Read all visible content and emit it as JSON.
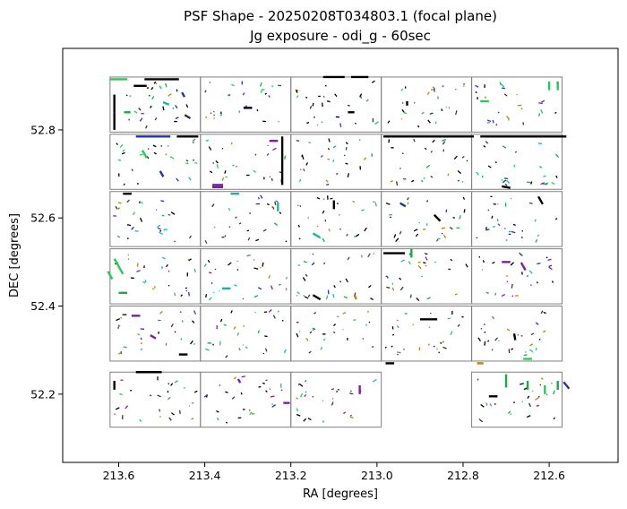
{
  "chart_data": {
    "type": "scatter",
    "title": "PSF Shape - 20250208T034803.1 (focal plane)",
    "subtitle": "Jg exposure - odi_g - 60sec",
    "xlabel": "RA [degrees]",
    "ylabel": "DEC [degrees]",
    "xlim": [
      213.73,
      212.44
    ],
    "ylim": [
      52.045,
      52.985
    ],
    "x_inverted": true,
    "grid": false,
    "xticks": [
      213.6,
      213.4,
      213.2,
      213.0,
      212.8,
      212.6
    ],
    "xtick_labels": [
      "213.6",
      "213.4",
      "213.2",
      "213.0",
      "212.8",
      "212.6"
    ],
    "yticks": [
      52.2,
      52.4,
      52.6,
      52.8
    ],
    "ytick_labels": [
      "52.2",
      "52.4",
      "52.6",
      "52.8"
    ],
    "chips": [
      {
        "ra_min": 213.41,
        "ra_max": 213.62,
        "dec_min": 52.795,
        "dec_max": 52.92
      },
      {
        "ra_min": 213.2,
        "ra_max": 213.41,
        "dec_min": 52.795,
        "dec_max": 52.92
      },
      {
        "ra_min": 212.99,
        "ra_max": 213.2,
        "dec_min": 52.795,
        "dec_max": 52.92
      },
      {
        "ra_min": 212.78,
        "ra_max": 212.99,
        "dec_min": 52.795,
        "dec_max": 52.92
      },
      {
        "ra_min": 212.57,
        "ra_max": 212.78,
        "dec_min": 52.795,
        "dec_max": 52.92
      },
      {
        "ra_min": 213.41,
        "ra_max": 213.62,
        "dec_min": 52.665,
        "dec_max": 52.79
      },
      {
        "ra_min": 213.2,
        "ra_max": 213.41,
        "dec_min": 52.665,
        "dec_max": 52.79
      },
      {
        "ra_min": 212.99,
        "ra_max": 213.2,
        "dec_min": 52.665,
        "dec_max": 52.79
      },
      {
        "ra_min": 212.78,
        "ra_max": 212.99,
        "dec_min": 52.665,
        "dec_max": 52.79
      },
      {
        "ra_min": 212.57,
        "ra_max": 212.78,
        "dec_min": 52.665,
        "dec_max": 52.79
      },
      {
        "ra_min": 213.41,
        "ra_max": 213.62,
        "dec_min": 52.535,
        "dec_max": 52.66
      },
      {
        "ra_min": 213.2,
        "ra_max": 213.41,
        "dec_min": 52.535,
        "dec_max": 52.66
      },
      {
        "ra_min": 212.99,
        "ra_max": 213.2,
        "dec_min": 52.535,
        "dec_max": 52.66
      },
      {
        "ra_min": 212.78,
        "ra_max": 212.99,
        "dec_min": 52.535,
        "dec_max": 52.66
      },
      {
        "ra_min": 212.57,
        "ra_max": 212.78,
        "dec_min": 52.535,
        "dec_max": 52.66
      },
      {
        "ra_min": 213.41,
        "ra_max": 213.62,
        "dec_min": 52.405,
        "dec_max": 52.53
      },
      {
        "ra_min": 213.2,
        "ra_max": 213.41,
        "dec_min": 52.405,
        "dec_max": 52.53
      },
      {
        "ra_min": 212.99,
        "ra_max": 213.2,
        "dec_min": 52.405,
        "dec_max": 52.53
      },
      {
        "ra_min": 212.78,
        "ra_max": 212.99,
        "dec_min": 52.405,
        "dec_max": 52.53
      },
      {
        "ra_min": 212.57,
        "ra_max": 212.78,
        "dec_min": 52.405,
        "dec_max": 52.53
      },
      {
        "ra_min": 213.41,
        "ra_max": 213.62,
        "dec_min": 52.275,
        "dec_max": 52.4
      },
      {
        "ra_min": 213.2,
        "ra_max": 213.41,
        "dec_min": 52.275,
        "dec_max": 52.4
      },
      {
        "ra_min": 212.99,
        "ra_max": 213.2,
        "dec_min": 52.275,
        "dec_max": 52.4
      },
      {
        "ra_min": 212.78,
        "ra_max": 212.99,
        "dec_min": 52.275,
        "dec_max": 52.4
      },
      {
        "ra_min": 212.57,
        "ra_max": 212.78,
        "dec_min": 52.275,
        "dec_max": 52.4
      },
      {
        "ra_min": 213.41,
        "ra_max": 213.62,
        "dec_min": 52.125,
        "dec_max": 52.25
      },
      {
        "ra_min": 213.2,
        "ra_max": 213.41,
        "dec_min": 52.125,
        "dec_max": 52.25
      },
      {
        "ra_min": 212.99,
        "ra_max": 213.2,
        "dec_min": 52.125,
        "dec_max": 52.25
      },
      {
        "ra_min": 212.57,
        "ra_max": 212.78,
        "dec_min": 52.125,
        "dec_max": 52.25
      }
    ],
    "psf_colors": [
      "#000000",
      "#000000",
      "#000000",
      "#333333",
      "#1aa84a",
      "#22cc55",
      "#7a1fa2",
      "#20b2aa",
      "#2233aa",
      "#b8860b"
    ],
    "psf_segments": [
      {
        "ra": 213.52,
        "dec": 52.915,
        "len": 0.04,
        "angle": 0,
        "color": "#000000"
      },
      {
        "ra": 213.48,
        "dec": 52.915,
        "len": 0.04,
        "angle": 0,
        "color": "#000000"
      },
      {
        "ra": 213.6,
        "dec": 52.915,
        "len": 0.04,
        "angle": 0,
        "color": "#22cc55"
      },
      {
        "ra": 213.55,
        "dec": 52.9,
        "len": 0.03,
        "angle": 0,
        "color": "#000000"
      },
      {
        "ra": 213.61,
        "dec": 52.86,
        "len": 0.04,
        "angle": 90,
        "color": "#000000"
      },
      {
        "ra": 213.61,
        "dec": 52.82,
        "len": 0.04,
        "angle": 90,
        "color": "#000000"
      },
      {
        "ra": 213.58,
        "dec": 52.84,
        "len": 0.015,
        "angle": 0,
        "color": "#1aa84a"
      },
      {
        "ra": 213.49,
        "dec": 52.86,
        "len": 0.015,
        "angle": 20,
        "color": "#20b2aa"
      },
      {
        "ra": 213.45,
        "dec": 52.88,
        "len": 0.012,
        "angle": 60,
        "color": "#2233aa"
      },
      {
        "ra": 213.44,
        "dec": 52.83,
        "len": 0.015,
        "angle": 30,
        "color": "#333333"
      },
      {
        "ra": 213.3,
        "dec": 52.85,
        "len": 0.02,
        "angle": 0,
        "color": "#000000"
      },
      {
        "ra": 213.1,
        "dec": 52.92,
        "len": 0.05,
        "angle": 0,
        "color": "#000000"
      },
      {
        "ra": 213.04,
        "dec": 52.92,
        "len": 0.04,
        "angle": 0,
        "color": "#000000"
      },
      {
        "ra": 213.06,
        "dec": 52.84,
        "len": 0.015,
        "angle": 0,
        "color": "#000000"
      },
      {
        "ra": 212.93,
        "dec": 52.86,
        "len": 0.01,
        "angle": 90,
        "color": "#000000"
      },
      {
        "ra": 212.6,
        "dec": 52.9,
        "len": 0.02,
        "angle": 90,
        "color": "#22cc55"
      },
      {
        "ra": 212.58,
        "dec": 52.9,
        "len": 0.02,
        "angle": 90,
        "color": "#22cc55"
      },
      {
        "ra": 212.75,
        "dec": 52.865,
        "len": 0.02,
        "angle": 0,
        "color": "#22cc55"
      },
      {
        "ra": 213.52,
        "dec": 52.785,
        "len": 0.08,
        "angle": 0,
        "color": "#2233aa"
      },
      {
        "ra": 213.44,
        "dec": 52.785,
        "len": 0.05,
        "angle": 0,
        "color": "#000000"
      },
      {
        "ra": 213.54,
        "dec": 52.745,
        "len": 0.02,
        "angle": 60,
        "color": "#22cc55"
      },
      {
        "ra": 213.5,
        "dec": 52.7,
        "len": 0.015,
        "angle": 60,
        "color": "#2233aa"
      },
      {
        "ra": 213.37,
        "dec": 52.675,
        "len": 0.025,
        "angle": 0,
        "color": "#7a1fa2"
      },
      {
        "ra": 213.37,
        "dec": 52.67,
        "len": 0.025,
        "angle": 0,
        "color": "#7a1fa2"
      },
      {
        "ra": 213.22,
        "dec": 52.73,
        "len": 0.11,
        "angle": 90,
        "color": "#000000"
      },
      {
        "ra": 213.24,
        "dec": 52.775,
        "len": 0.02,
        "angle": 0,
        "color": "#7a1fa2"
      },
      {
        "ra": 212.88,
        "dec": 52.785,
        "len": 0.21,
        "angle": 0,
        "color": "#000000"
      },
      {
        "ra": 212.66,
        "dec": 52.785,
        "len": 0.2,
        "angle": 0,
        "color": "#000000"
      },
      {
        "ra": 212.7,
        "dec": 52.67,
        "len": 0.02,
        "angle": 10,
        "color": "#000000"
      },
      {
        "ra": 213.58,
        "dec": 52.655,
        "len": 0.02,
        "angle": 0,
        "color": "#000000"
      },
      {
        "ra": 213.33,
        "dec": 52.655,
        "len": 0.02,
        "angle": 0,
        "color": "#20b2aa"
      },
      {
        "ra": 213.23,
        "dec": 52.625,
        "len": 0.02,
        "angle": 90,
        "color": "#20b2aa"
      },
      {
        "ra": 213.1,
        "dec": 52.63,
        "len": 0.02,
        "angle": 90,
        "color": "#000000"
      },
      {
        "ra": 212.94,
        "dec": 52.63,
        "len": 0.015,
        "angle": 30,
        "color": "#2233aa"
      },
      {
        "ra": 212.86,
        "dec": 52.6,
        "len": 0.02,
        "angle": 45,
        "color": "#000000"
      },
      {
        "ra": 212.62,
        "dec": 52.64,
        "len": 0.02,
        "angle": 60,
        "color": "#000000"
      },
      {
        "ra": 213.14,
        "dec": 52.56,
        "len": 0.02,
        "angle": 30,
        "color": "#20b2aa"
      },
      {
        "ra": 213.6,
        "dec": 52.49,
        "len": 0.04,
        "angle": 60,
        "color": "#22cc55"
      },
      {
        "ra": 213.62,
        "dec": 52.47,
        "len": 0.02,
        "angle": 60,
        "color": "#22cc55"
      },
      {
        "ra": 213.59,
        "dec": 52.43,
        "len": 0.02,
        "angle": 0,
        "color": "#1aa84a"
      },
      {
        "ra": 213.35,
        "dec": 52.44,
        "len": 0.02,
        "angle": 0,
        "color": "#20b2aa"
      },
      {
        "ra": 212.92,
        "dec": 52.52,
        "len": 0.02,
        "angle": 90,
        "color": "#1aa84a"
      },
      {
        "ra": 212.96,
        "dec": 52.52,
        "len": 0.05,
        "angle": 0,
        "color": "#000000"
      },
      {
        "ra": 212.7,
        "dec": 52.5,
        "len": 0.02,
        "angle": 0,
        "color": "#7a1fa2"
      },
      {
        "ra": 212.66,
        "dec": 52.49,
        "len": 0.02,
        "angle": 60,
        "color": "#7a1fa2"
      },
      {
        "ra": 213.05,
        "dec": 52.42,
        "len": 0.01,
        "angle": 70,
        "color": "#b8860b"
      },
      {
        "ra": 213.14,
        "dec": 52.42,
        "len": 0.02,
        "angle": 30,
        "color": "#000000"
      },
      {
        "ra": 213.56,
        "dec": 52.378,
        "len": 0.02,
        "angle": 0,
        "color": "#7a1fa2"
      },
      {
        "ra": 213.52,
        "dec": 52.33,
        "len": 0.015,
        "angle": 30,
        "color": "#7a1fa2"
      },
      {
        "ra": 213.45,
        "dec": 52.29,
        "len": 0.02,
        "angle": 0,
        "color": "#000000"
      },
      {
        "ra": 212.88,
        "dec": 52.37,
        "len": 0.04,
        "angle": 0,
        "color": "#000000"
      },
      {
        "ra": 212.97,
        "dec": 52.27,
        "len": 0.02,
        "angle": 0,
        "color": "#000000"
      },
      {
        "ra": 212.68,
        "dec": 52.33,
        "len": 0.015,
        "angle": 80,
        "color": "#000000"
      },
      {
        "ra": 212.65,
        "dec": 52.28,
        "len": 0.02,
        "angle": 0,
        "color": "#22cc55"
      },
      {
        "ra": 212.76,
        "dec": 52.27,
        "len": 0.015,
        "angle": 0,
        "color": "#b8860b"
      },
      {
        "ra": 213.53,
        "dec": 52.25,
        "len": 0.06,
        "angle": 0,
        "color": "#000000"
      },
      {
        "ra": 213.61,
        "dec": 52.22,
        "len": 0.02,
        "angle": 90,
        "color": "#000000"
      },
      {
        "ra": 213.32,
        "dec": 52.23,
        "len": 0.01,
        "angle": 60,
        "color": "#7a1fa2"
      },
      {
        "ra": 213.21,
        "dec": 52.18,
        "len": 0.015,
        "angle": 0,
        "color": "#7a1fa2"
      },
      {
        "ra": 213.04,
        "dec": 52.21,
        "len": 0.02,
        "angle": 90,
        "color": "#7a1fa2"
      },
      {
        "ra": 212.7,
        "dec": 52.23,
        "len": 0.03,
        "angle": 90,
        "color": "#1aa84a"
      },
      {
        "ra": 212.65,
        "dec": 52.22,
        "len": 0.02,
        "angle": 90,
        "color": "#1aa84a"
      },
      {
        "ra": 212.61,
        "dec": 52.21,
        "len": 0.02,
        "angle": 90,
        "color": "#22cc55"
      },
      {
        "ra": 212.58,
        "dec": 52.22,
        "len": 0.02,
        "angle": 90,
        "color": "#1aa84a"
      },
      {
        "ra": 212.56,
        "dec": 52.22,
        "len": 0.02,
        "angle": 50,
        "color": "#2233aa"
      },
      {
        "ra": 212.73,
        "dec": 52.195,
        "len": 0.02,
        "angle": 0,
        "color": "#000000"
      }
    ]
  }
}
